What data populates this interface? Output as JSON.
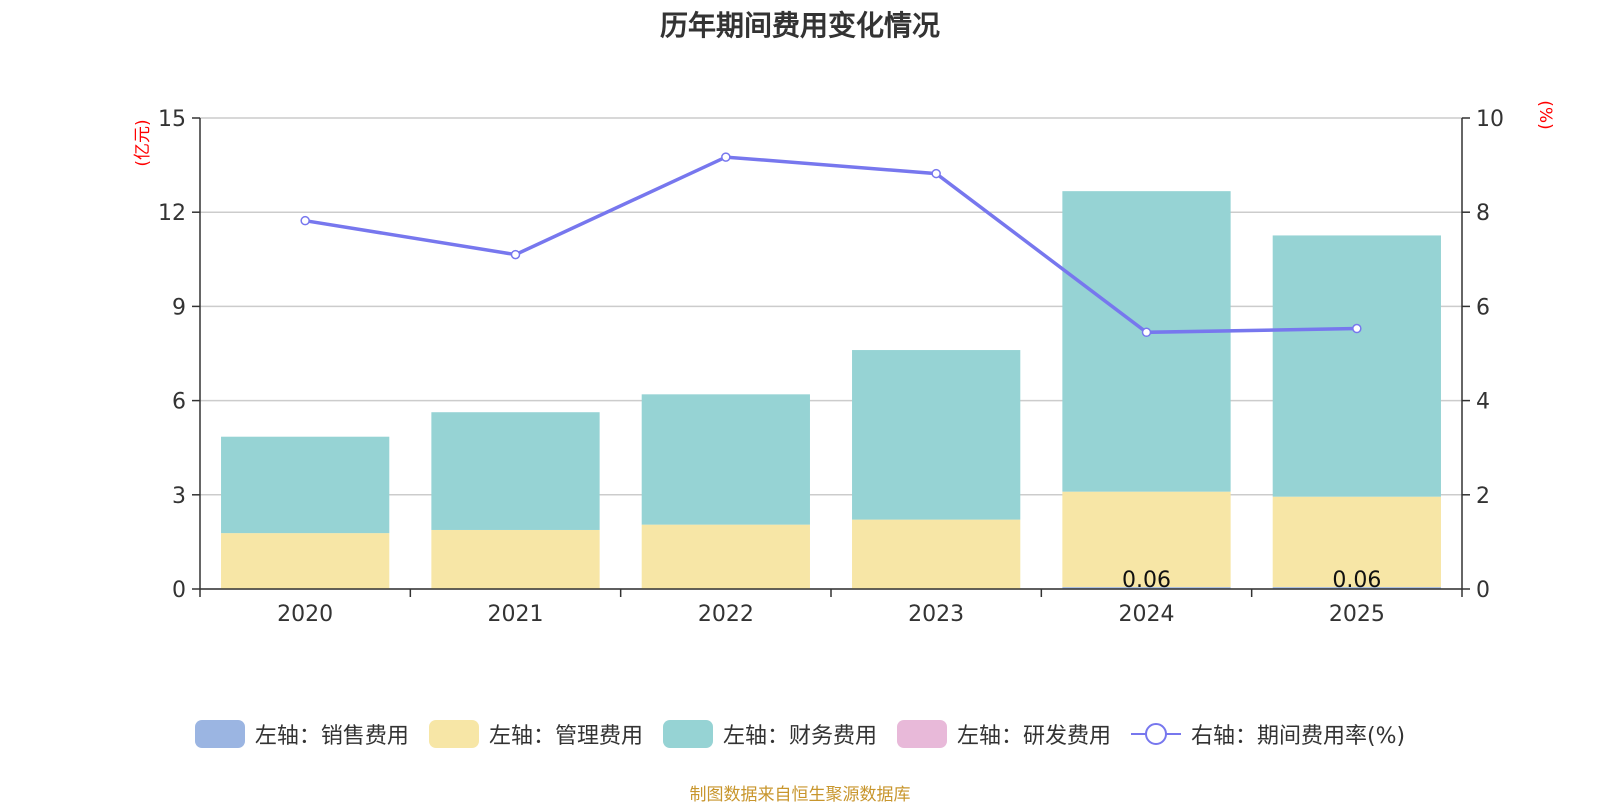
{
  "title": "历年期间费用变化情况",
  "source": "制图数据来自恒生聚源数据库",
  "colors": {
    "sales": "#9bb5e2",
    "admin": "#f7e6a6",
    "finance": "#96d3d4",
    "rnd": "#e8b9d9",
    "ratio": "#7777ee",
    "unit_label": "#ff0000",
    "grid": "#cccccc",
    "axis": "#333333"
  },
  "chart_data": {
    "type": "bar",
    "stacked": true,
    "title": "历年期间费用变化情况",
    "categories": [
      "2020",
      "2021",
      "2022",
      "2023",
      "2024",
      "2025"
    ],
    "y_left": {
      "label": "(亿元)",
      "min": 0,
      "max": 15,
      "ticks": [
        0,
        3,
        6,
        9,
        12,
        15
      ]
    },
    "y_right": {
      "label": "(%)",
      "min": 0,
      "max": 10,
      "ticks": [
        0,
        2,
        4,
        6,
        8,
        10
      ]
    },
    "series": [
      {
        "name": "左轴：销售费用",
        "key": "sales",
        "axis": "left",
        "type": "bar",
        "values": [
          0,
          0,
          0,
          0,
          0.06,
          0.06
        ]
      },
      {
        "name": "左轴：管理费用",
        "key": "admin",
        "axis": "left",
        "type": "bar",
        "values": [
          1.78,
          1.88,
          2.05,
          2.21,
          3.04,
          2.88
        ]
      },
      {
        "name": "左轴：财务费用",
        "key": "finance",
        "axis": "left",
        "type": "bar",
        "values": [
          3.07,
          3.75,
          4.15,
          5.4,
          9.57,
          8.32
        ]
      },
      {
        "name": "左轴：研发费用",
        "key": "rnd",
        "axis": "left",
        "type": "bar",
        "values": [
          0,
          0,
          0,
          0,
          0,
          0
        ]
      },
      {
        "name": "右轴：期间费用率(%)",
        "key": "ratio",
        "axis": "right",
        "type": "line",
        "values": [
          7.82,
          7.1,
          9.17,
          8.82,
          5.45,
          5.53
        ]
      }
    ],
    "data_labels": [
      {
        "category": "2024",
        "text": "0.06"
      },
      {
        "category": "2025",
        "text": "0.06"
      }
    ]
  }
}
